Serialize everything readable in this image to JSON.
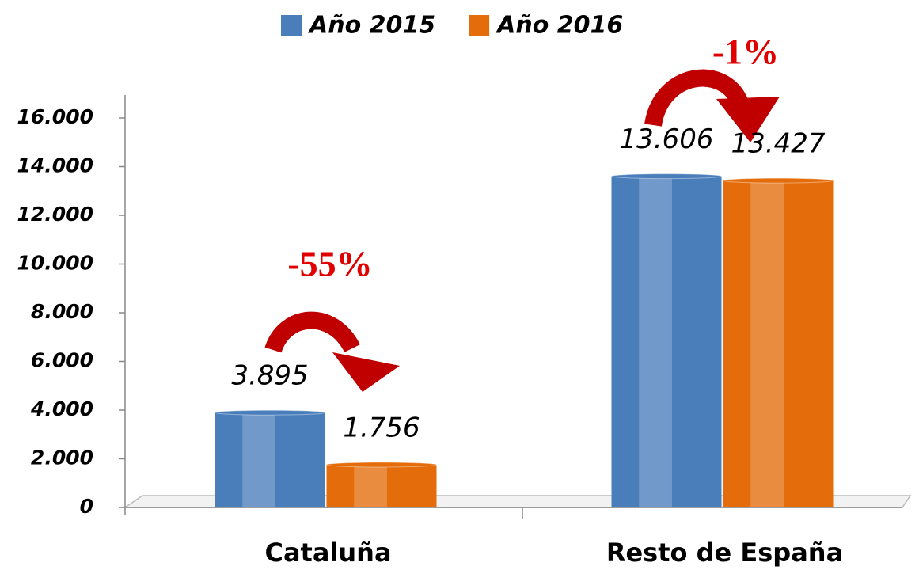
{
  "chart_data": {
    "type": "bar",
    "categories": [
      "Cataluña",
      "Resto de España"
    ],
    "series": [
      {
        "name": "Año 2015",
        "color": "#4a7ebb",
        "values": [
          3895,
          13606
        ],
        "value_labels": [
          "3.895",
          "13.606"
        ]
      },
      {
        "name": "Año 2016",
        "color": "#e46c0a",
        "values": [
          1756,
          13427
        ],
        "value_labels": [
          "1.756",
          "13.427"
        ]
      }
    ],
    "ylim": [
      0,
      16000
    ],
    "yticks": [
      0,
      {
        "value": 2000,
        "label": "2.000"
      },
      {
        "value": 4000,
        "label": "4.000"
      },
      {
        "value": 6000,
        "label": "6.000"
      },
      {
        "value": 8000,
        "label": "8.000"
      },
      {
        "value": 10000,
        "label": "10.000"
      },
      {
        "value": 12000,
        "label": "12.000"
      },
      {
        "value": 14000,
        "label": "14.000"
      },
      {
        "value": 16000,
        "label": "16.000"
      }
    ],
    "annotations": [
      "-55%",
      "-1%"
    ],
    "legend": "top"
  }
}
